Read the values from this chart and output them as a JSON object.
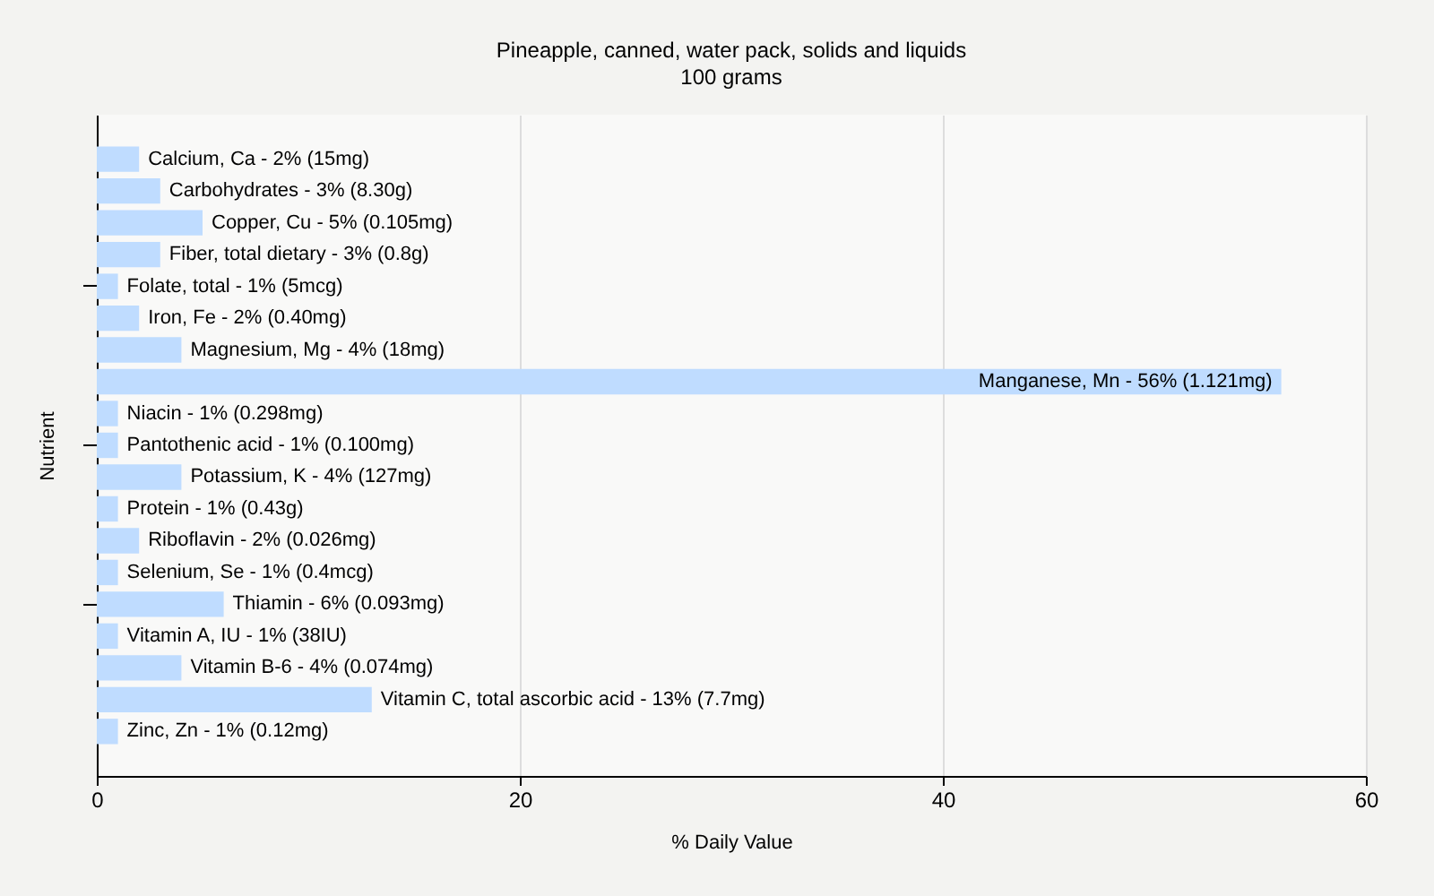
{
  "chart_data": {
    "type": "bar",
    "orientation": "horizontal",
    "title": "Pineapple, canned, water pack, solids and liquids",
    "subtitle": "100 grams",
    "xlabel": "% Daily Value",
    "ylabel": "Nutrient",
    "categories": [
      "Calcium, Ca - 2% (15mg)",
      "Carbohydrates - 3% (8.30g)",
      "Copper, Cu - 5% (0.105mg)",
      "Fiber, total dietary - 3% (0.8g)",
      "Folate, total - 1% (5mcg)",
      "Iron, Fe - 2% (0.40mg)",
      "Magnesium, Mg - 4% (18mg)",
      "Manganese, Mn - 56% (1.121mg)",
      "Niacin - 1% (0.298mg)",
      "Pantothenic acid - 1% (0.100mg)",
      "Potassium, K - 4% (127mg)",
      "Protein - 1% (0.43g)",
      "Riboflavin - 2% (0.026mg)",
      "Selenium, Se - 1% (0.4mcg)",
      "Thiamin - 6% (0.093mg)",
      "Vitamin A, IU - 1% (38IU)",
      "Vitamin B-6 - 4% (0.074mg)",
      "Vitamin C, total ascorbic acid - 13% (7.7mg)",
      "Zinc, Zn - 1% (0.12mg)"
    ],
    "values": [
      2,
      3,
      5,
      3,
      1,
      2,
      4,
      56,
      1,
      1,
      4,
      1,
      2,
      1,
      6,
      1,
      4,
      13,
      1
    ],
    "color": "#bfdcff",
    "xlim": [
      0,
      60
    ],
    "xticks": [
      0,
      20,
      40,
      60
    ],
    "grid": "x",
    "tick_labels": "x"
  }
}
